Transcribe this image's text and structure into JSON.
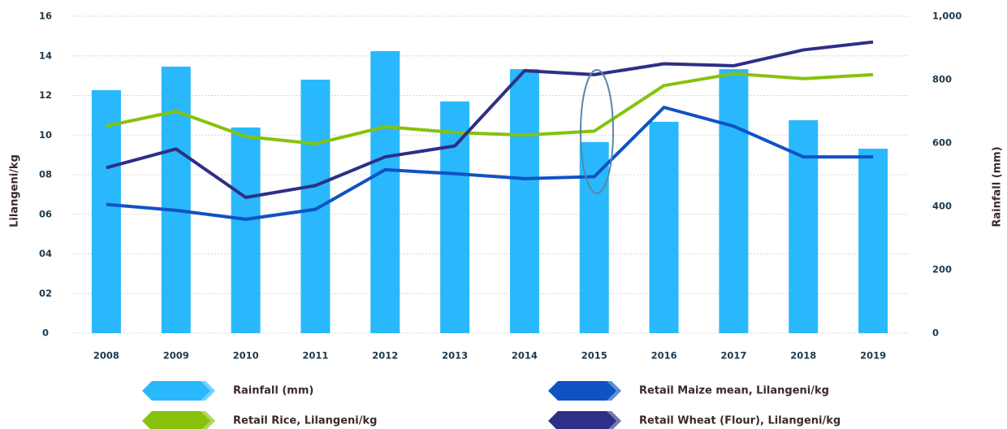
{
  "chart_data": {
    "type": "bar",
    "categories": [
      "2008",
      "2009",
      "2010",
      "2011",
      "2012",
      "2013",
      "2014",
      "2015",
      "2016",
      "2017",
      "2018",
      "2019"
    ],
    "ylabel": "Lilangeni/kg",
    "y2label": "Rainfall (mm)",
    "ylim": [
      0,
      16
    ],
    "yticks": [
      0,
      {
        "value": 2,
        "label": "02"
      },
      {
        "value": 4,
        "label": "04"
      },
      {
        "value": 6,
        "label": "06"
      },
      {
        "value": 8,
        "label": "08"
      },
      10,
      12,
      14,
      16
    ],
    "y2lim": [
      0,
      1000
    ],
    "y2ticks": [
      0,
      200,
      400,
      600,
      800,
      {
        "value": 1000,
        "label": "1,000"
      }
    ],
    "grid": true,
    "series": [
      {
        "name": "Rainfall (mm)",
        "type": "bar",
        "axis": "y2",
        "color": "#29b8fb",
        "values": [
          767,
          841,
          649,
          800,
          890,
          731,
          833,
          603,
          667,
          833,
          672,
          582
        ]
      },
      {
        "name": "Retail Rice, Lilangeni/kg",
        "type": "line",
        "color": "#86c20c",
        "values": [
          10.46,
          11.2,
          9.93,
          9.56,
          10.42,
          10.13,
          10.0,
          10.2,
          12.5,
          13.1,
          12.85,
          13.05
        ]
      },
      {
        "name": "Retail Maize mean, Lilangeni/kg",
        "type": "line",
        "color": "#0f52c4",
        "values": [
          6.5,
          6.2,
          5.75,
          6.25,
          8.25,
          8.05,
          7.8,
          7.9,
          11.4,
          10.45,
          8.9,
          8.9
        ]
      },
      {
        "name": "Retail Wheat (Flour), Lilangeni/kg",
        "type": "line",
        "color": "#2e2f86",
        "values": [
          8.35,
          9.3,
          6.85,
          7.45,
          8.9,
          9.45,
          13.25,
          13.05,
          13.6,
          13.5,
          14.3,
          14.7
        ]
      }
    ]
  }
}
